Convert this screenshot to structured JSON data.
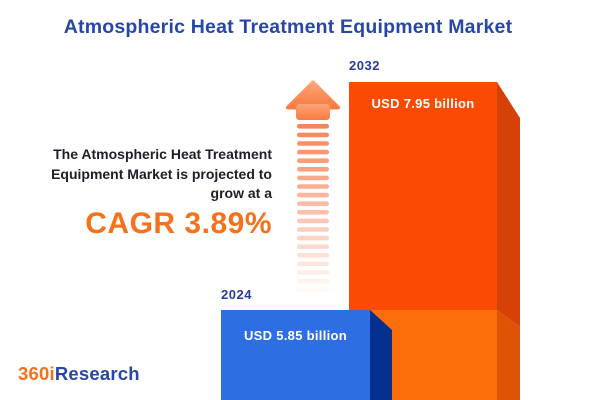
{
  "page": {
    "title": "Atmospheric Heat Treatment Equipment Market"
  },
  "chart_data": {
    "type": "bar",
    "title": "Atmospheric Heat Treatment Equipment Market",
    "categories": [
      "2024",
      "2032"
    ],
    "values": [
      5.85,
      7.95
    ],
    "unit": "USD billion",
    "value_labels": [
      "USD 5.85 billion",
      "USD 7.95 billion"
    ],
    "cagr_percent": 3.89,
    "xlabel": "",
    "ylabel": "",
    "grid": false,
    "legend": "none"
  },
  "bars": {
    "bar2024": {
      "year": "2024",
      "value_label": "USD 5.85 billion"
    },
    "bar2032": {
      "year": "2032",
      "value_label": "USD 7.95 billion"
    }
  },
  "description": {
    "line1": "The Atmospheric Heat Treatment",
    "line2": "Equipment Market is projected to",
    "line3": "grow at a",
    "cagr": "CAGR 3.89%"
  },
  "logo": {
    "part_orange": "360i",
    "part_blue": "Research"
  },
  "icons": {
    "growth_arrow": "up-arrow-icon"
  },
  "arrow": {
    "stripe_count": 20,
    "color": "#F8845A"
  },
  "colors": {
    "background": "#FFFFFF",
    "title_blue": "#2846A6",
    "year_label_blue": "#2B3C9E",
    "text_dark": "#1E1E28",
    "accent_orange": "#F8701A",
    "bar_blue_front": "#2D6FE3",
    "bar_blue_side": "#05308F",
    "bar_orange_front_top": "#FB4A04",
    "bar_orange_front_bottom": "#FB6D09",
    "bar_orange_side_top": "#D64108",
    "bar_orange_side_bottom": "#DE5304",
    "arrow_orange": "#F8845A"
  }
}
